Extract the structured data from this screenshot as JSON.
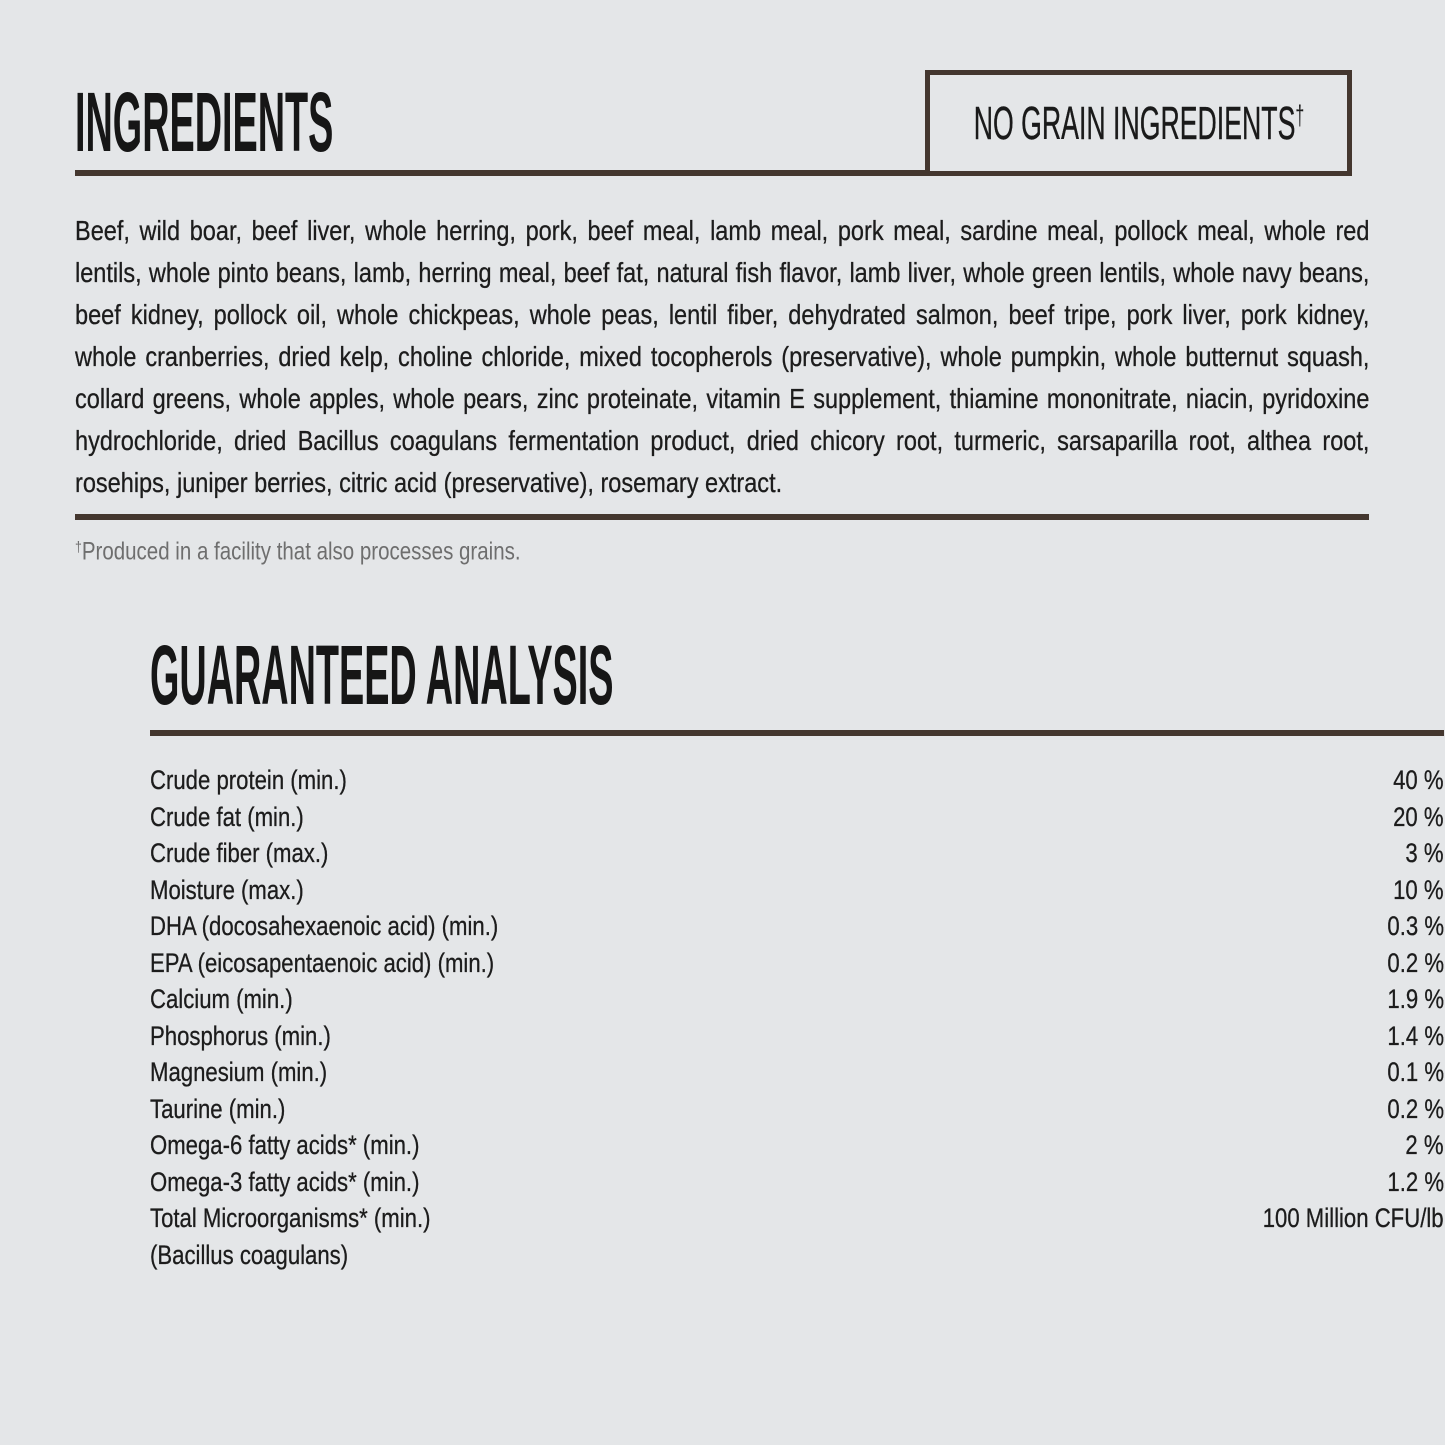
{
  "page": {
    "colors": {
      "bg": "#e4e6e8",
      "ink": "#1c1c1c",
      "rule": "#44372f",
      "muted": "#6e6e6e"
    }
  },
  "ingredients": {
    "title": "INGREDIENTS",
    "badge": {
      "text": "NO GRAIN INGREDIENTS",
      "dagger": "†"
    },
    "body": "Beef, wild boar, beef liver, whole herring, pork, beef meal, lamb meal, pork meal, sardine meal, pollock meal, whole red lentils, whole pinto beans, lamb, herring meal, beef fat, natural fish flavor, lamb liver, whole green lentils, whole navy beans, beef kidney, pollock oil, whole chickpeas, whole peas, lentil fiber, dehydrated salmon, beef tripe, pork liver, pork kidney, whole cranberries, dried kelp, choline chloride, mixed tocopherols (preservative), whole pumpkin, whole butternut squash, collard greens, whole apples, whole pears, zinc proteinate, vitamin E supplement, thiamine mononitrate, niacin, pyridoxine hydrochloride, dried Bacillus coagulans fermentation product, dried chicory root, turmeric, sarsaparilla root, althea root, rosehips, juniper berries, citric acid (preservative), rosemary extract.",
    "footnote": {
      "dagger": "†",
      "text": "Produced in a facility that also processes grains."
    }
  },
  "guaranteed_analysis": {
    "title": "GUARANTEED ANALYSIS",
    "rows": [
      {
        "label": "Crude protein (min.)",
        "value": "40 %"
      },
      {
        "label": "Crude fat (min.)",
        "value": "20 %"
      },
      {
        "label": "Crude fiber (max.)",
        "value": "3 %"
      },
      {
        "label": "Moisture (max.)",
        "value": "10 %"
      },
      {
        "label": "DHA (docosahexaenoic acid) (min.)",
        "value": "0.3 %"
      },
      {
        "label": "EPA (eicosapentaenoic acid) (min.)",
        "value": "0.2 %"
      },
      {
        "label": "Calcium (min.)",
        "value": "1.9 %"
      },
      {
        "label": "Phosphorus (min.)",
        "value": "1.4 %"
      },
      {
        "label": "Magnesium (min.)",
        "value": "0.1 %"
      },
      {
        "label": "Taurine (min.)",
        "value": "0.2 %"
      },
      {
        "label": "Omega-6 fatty acids* (min.)",
        "value": "2 %"
      },
      {
        "label": "Omega-3 fatty acids* (min.)",
        "value": "1.2 %"
      },
      {
        "label": "Total Microorganisms* (min.)",
        "value": "100 Million CFU/lb"
      },
      {
        "label": "(Bacillus coagulans)",
        "value": ""
      }
    ]
  }
}
